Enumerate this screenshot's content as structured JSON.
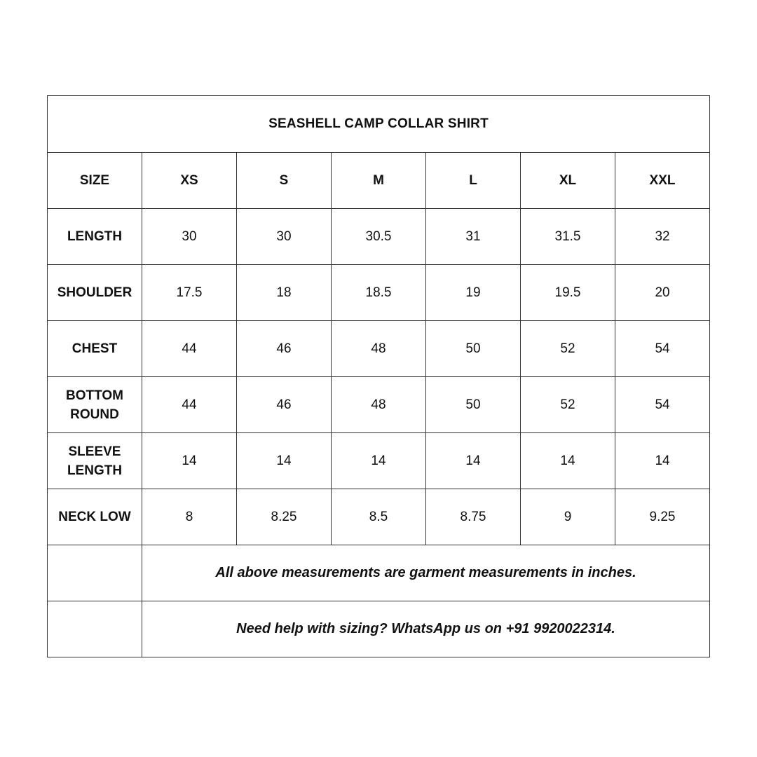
{
  "title": "SEASHELL CAMP COLLAR SHIRT",
  "header": {
    "label": "SIZE",
    "sizes": [
      "XS",
      "S",
      "M",
      "L",
      "XL",
      "XXL"
    ]
  },
  "rows": [
    {
      "label": "LENGTH",
      "values": [
        "30",
        "30",
        "30.5",
        "31",
        "31.5",
        "32"
      ]
    },
    {
      "label": "SHOULDER",
      "values": [
        "17.5",
        "18",
        "18.5",
        "19",
        "19.5",
        "20"
      ]
    },
    {
      "label": "CHEST",
      "values": [
        "44",
        "46",
        "48",
        "50",
        "52",
        "54"
      ]
    },
    {
      "label": "BOTTOM ROUND",
      "values": [
        "44",
        "46",
        "48",
        "50",
        "52",
        "54"
      ]
    },
    {
      "label": "SLEEVE LENGTH",
      "values": [
        "14",
        "14",
        "14",
        "14",
        "14",
        "14"
      ]
    },
    {
      "label": "NECK LOW",
      "values": [
        "8",
        "8.25",
        "8.5",
        "8.75",
        "9",
        "9.25"
      ]
    }
  ],
  "notes": [
    "All above measurements are garment measurements in inches.",
    "Need help with sizing? WhatsApp us on +91 9920022314."
  ]
}
